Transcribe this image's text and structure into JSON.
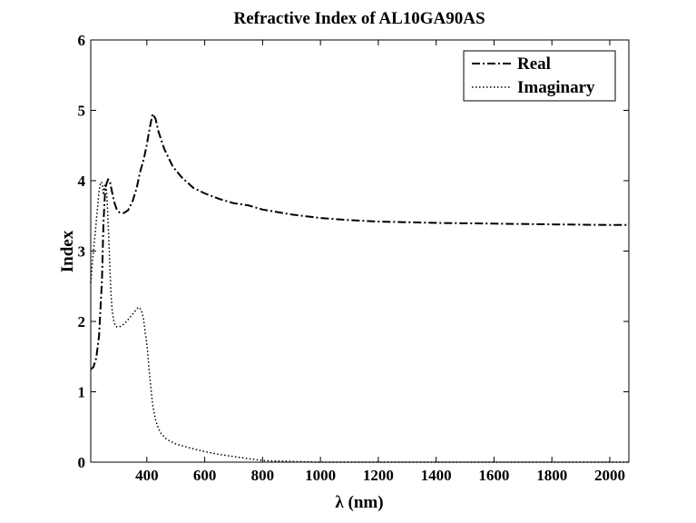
{
  "chart_data": {
    "type": "line",
    "title": "Refractive Index of AL10GA90AS",
    "xlabel": "λ (nm)",
    "ylabel": "Index",
    "xlim": [
      206,
      2066
    ],
    "ylim": [
      0,
      6
    ],
    "xticks": [
      400,
      600,
      800,
      1000,
      1200,
      1400,
      1600,
      1800,
      2000
    ],
    "yticks": [
      0,
      1,
      2,
      3,
      4,
      5,
      6
    ],
    "grid": false,
    "legend_position": "top-right",
    "series": [
      {
        "name": "Real",
        "style": "dash-dot",
        "color": "#000000",
        "x": [
          206,
          215,
          225,
          235,
          245,
          250,
          255,
          260,
          266,
          272,
          279,
          287,
          295,
          305,
          320,
          335,
          350,
          365,
          375,
          390,
          400,
          410,
          420,
          430,
          440,
          460,
          490,
          520,
          560,
          600,
          650,
          700,
          750,
          800,
          900,
          1000,
          1100,
          1200,
          1400,
          1600,
          1800,
          2000,
          2066
        ],
        "y": [
          1.32,
          1.35,
          1.48,
          1.8,
          2.6,
          3.4,
          3.8,
          3.95,
          4.02,
          4.0,
          3.85,
          3.7,
          3.6,
          3.55,
          3.54,
          3.58,
          3.7,
          3.9,
          4.1,
          4.32,
          4.52,
          4.75,
          4.95,
          4.88,
          4.7,
          4.45,
          4.2,
          4.05,
          3.9,
          3.82,
          3.74,
          3.68,
          3.65,
          3.59,
          3.52,
          3.47,
          3.44,
          3.42,
          3.4,
          3.39,
          3.38,
          3.37,
          3.37
        ]
      },
      {
        "name": "Imaginary",
        "style": "dotted",
        "color": "#000000",
        "x": [
          206,
          212,
          220,
          228,
          235,
          240,
          245,
          250,
          255,
          260,
          264,
          268,
          272,
          276,
          280,
          286,
          292,
          300,
          310,
          320,
          330,
          340,
          350,
          360,
          370,
          380,
          388,
          394,
          398,
          402,
          408,
          414,
          420,
          430,
          440,
          450,
          470,
          500,
          550,
          600,
          650,
          700,
          750,
          790,
          810,
          900,
          1000,
          1200,
          1400,
          1600,
          1800,
          2000,
          2066
        ],
        "y": [
          2.55,
          2.85,
          3.2,
          3.55,
          3.85,
          3.98,
          3.97,
          3.8,
          3.95,
          3.9,
          3.6,
          3.2,
          2.8,
          2.4,
          2.15,
          2.0,
          1.93,
          1.92,
          1.93,
          1.96,
          2.0,
          2.05,
          2.1,
          2.15,
          2.2,
          2.17,
          2.05,
          1.85,
          1.75,
          1.6,
          1.3,
          1.05,
          0.82,
          0.6,
          0.48,
          0.4,
          0.32,
          0.26,
          0.2,
          0.15,
          0.11,
          0.08,
          0.05,
          0.03,
          0.02,
          0.01,
          0.0,
          0.0,
          0.0,
          0.0,
          0.0,
          0.0,
          0.0
        ]
      }
    ]
  }
}
